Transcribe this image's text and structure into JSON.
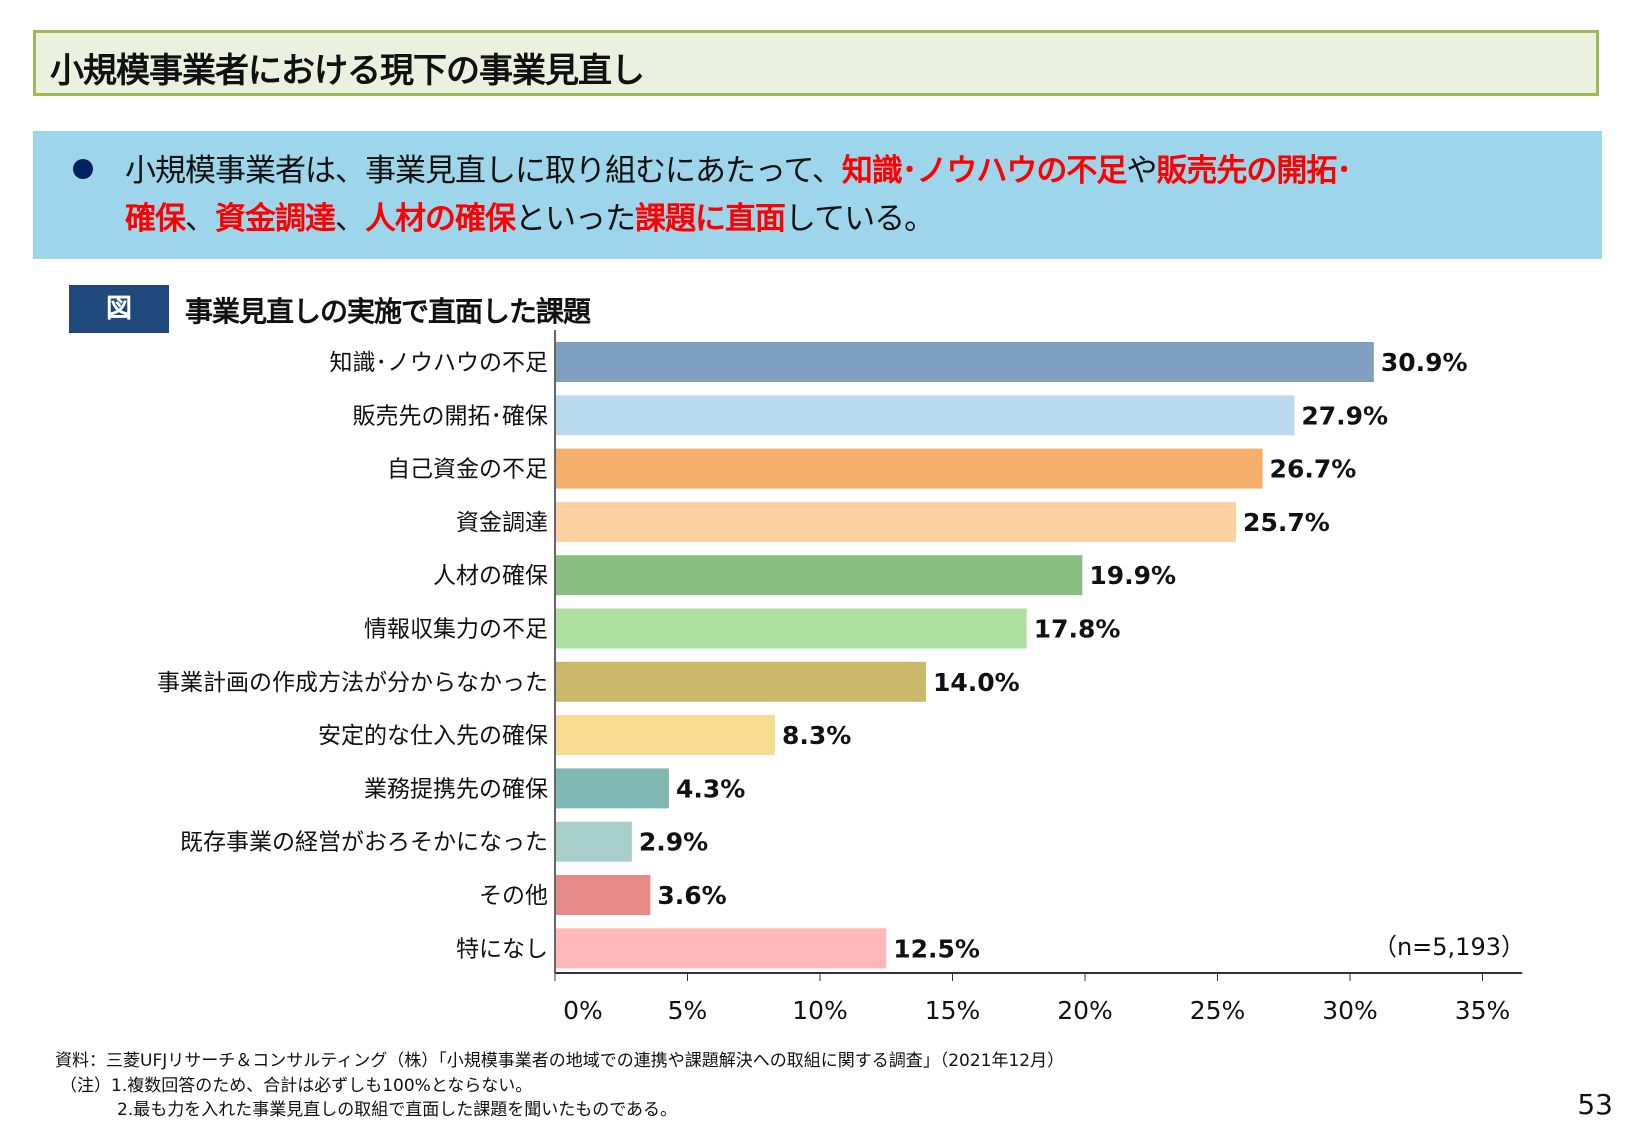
{
  "header": {
    "title": "小規模事業者における現下の事業見直し"
  },
  "summary": {
    "line1": [
      {
        "text": "小規模事業者は、事業見直しに取り組むにあたって、",
        "em": false
      },
      {
        "text": "知識･ノウハウの不足",
        "em": true
      },
      {
        "text": "や",
        "em": false
      },
      {
        "text": "販売先の開拓･",
        "em": true
      }
    ],
    "line2": [
      {
        "text": "確保",
        "em": true
      },
      {
        "text": "、",
        "em": false
      },
      {
        "text": "資金調達",
        "em": true
      },
      {
        "text": "、",
        "em": false
      },
      {
        "text": "人材の確保",
        "em": true
      },
      {
        "text": "といった",
        "em": false
      },
      {
        "text": "課題に直面",
        "em": true
      },
      {
        "text": "している。",
        "em": false
      }
    ],
    "bullet_color": "#002060",
    "emphasis_color": "#ff0000"
  },
  "figure": {
    "tag": "図",
    "title": "事業見直しの実施で直面した課題"
  },
  "chart_data": {
    "type": "bar",
    "orientation": "horizontal",
    "title": "事業見直しの実施で直面した課題",
    "categories": [
      "知識･ノウハウの不足",
      "販売先の開拓･確保",
      "自己資金の不足",
      "資金調達",
      "人材の確保",
      "情報収集力の不足",
      "事業計画の作成方法が分からなかった",
      "安定的な仕入先の確保",
      "業務提携先の確保",
      "既存事業の経営がおろそかになった",
      "その他",
      "特になし"
    ],
    "values": [
      30.9,
      27.9,
      26.7,
      25.7,
      19.9,
      17.8,
      14.0,
      8.3,
      4.3,
      2.9,
      3.6,
      12.5
    ],
    "value_labels": [
      "30.9%",
      "27.9%",
      "26.7%",
      "25.7%",
      "19.9%",
      "17.8%",
      "14.0%",
      "8.3%",
      "4.3%",
      "2.9%",
      "3.6%",
      "12.5%"
    ],
    "colors": [
      "#7f9fc0",
      "#bcdaee",
      "#f4b06b",
      "#fdd0a2",
      "#8abd82",
      "#aee0a2",
      "#cab86b",
      "#f5dc90",
      "#80b7b3",
      "#a9cfcb",
      "#e68a8a",
      "#ffb9b9"
    ],
    "xlim": [
      0,
      36.5
    ],
    "xticks": [
      0,
      5,
      10,
      15,
      20,
      25,
      30,
      35
    ],
    "xtick_labels": [
      "0%",
      "5%",
      "10%",
      "15%",
      "20%",
      "25%",
      "30%",
      "35%"
    ],
    "annotation": "（n=5,193）",
    "grid": false
  },
  "footer": {
    "source": "資料：三菱UFJリサーチ＆コンサルティング（株）「小規模事業者の地域での連携や課題解決への取組に関する調査」（2021年12月）",
    "note1": "（注）1.複数回答のため、合計は必ずしも100%とならない。",
    "note2": "2.最も力を入れた事業見直しの取組で直面した課題を聞いたものである。",
    "page": "53"
  }
}
